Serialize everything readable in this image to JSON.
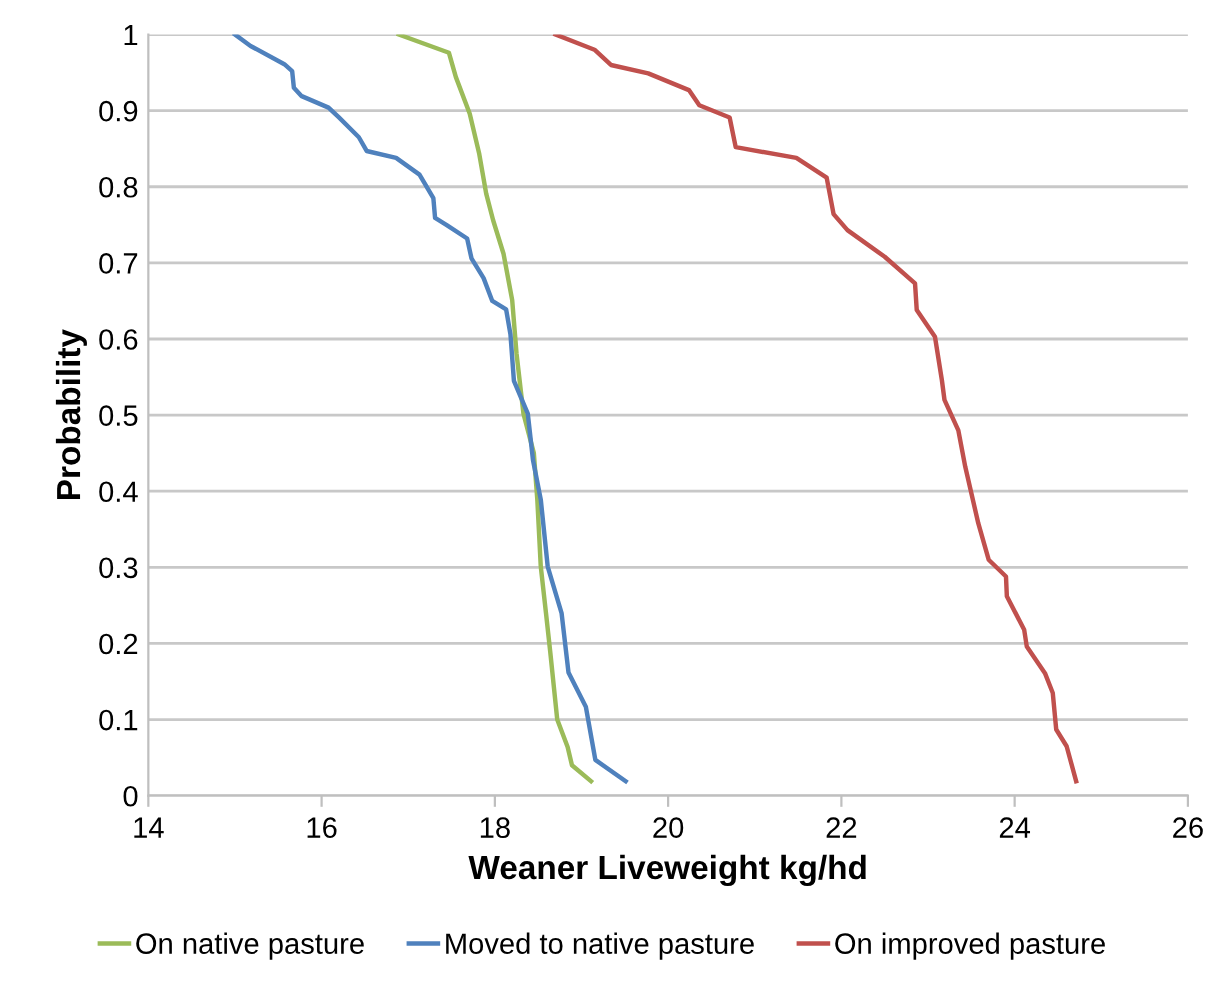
{
  "chart_data": {
    "type": "line",
    "xlabel": "Weaner Liveweight kg/hd",
    "ylabel": "Probability",
    "xlim": [
      14,
      26
    ],
    "xticks": [
      14,
      16,
      18,
      20,
      22,
      24,
      26
    ],
    "ylim": [
      0,
      1
    ],
    "yticks": [
      0,
      0.1,
      0.2,
      0.3,
      0.4,
      0.5,
      0.6,
      0.7,
      0.8,
      0.9,
      1
    ],
    "grid": "y",
    "legend": "bottom",
    "marker": "none",
    "line_style": "solid",
    "series": [
      {
        "name": "On native pasture",
        "color": "#9bbb59",
        "x": [
          16.89,
          17.47,
          17.55,
          17.71,
          17.82,
          17.9,
          17.98,
          18.1,
          18.2,
          18.25,
          18.33,
          18.45,
          18.49,
          18.53,
          18.59,
          18.64,
          18.72,
          18.84,
          18.89,
          19.11
        ],
        "values": [
          1.0,
          0.976,
          0.944,
          0.896,
          0.843,
          0.791,
          0.756,
          0.712,
          0.651,
          0.581,
          0.502,
          0.45,
          0.389,
          0.301,
          0.24,
          0.188,
          0.1,
          0.064,
          0.04,
          0.019
        ]
      },
      {
        "name": "Moved to native pasture",
        "color": "#4f81bd",
        "x": [
          15.0,
          15.18,
          15.57,
          15.66,
          15.68,
          15.77,
          16.08,
          16.2,
          16.43,
          16.52,
          16.86,
          17.13,
          17.29,
          17.31,
          17.44,
          17.68,
          17.73,
          17.87,
          17.97,
          18.13,
          18.18,
          18.22,
          18.38,
          18.44,
          18.53,
          18.61,
          18.77,
          18.85,
          19.05,
          19.16,
          19.51
        ],
        "values": [
          1.0,
          0.985,
          0.961,
          0.952,
          0.93,
          0.919,
          0.904,
          0.891,
          0.865,
          0.847,
          0.838,
          0.816,
          0.785,
          0.759,
          0.75,
          0.732,
          0.706,
          0.68,
          0.65,
          0.639,
          0.606,
          0.545,
          0.502,
          0.441,
          0.389,
          0.301,
          0.24,
          0.162,
          0.117,
          0.047,
          0.019
        ]
      },
      {
        "name": "On improved pasture",
        "color": "#c0504d",
        "x": [
          18.7,
          19.15,
          19.34,
          19.77,
          20.24,
          20.36,
          20.71,
          20.78,
          21.48,
          21.83,
          21.91,
          22.07,
          22.5,
          22.85,
          22.87,
          23.08,
          23.16,
          23.19,
          23.35,
          23.43,
          23.58,
          23.7,
          23.9,
          23.91,
          24.11,
          24.14,
          24.35,
          24.44,
          24.48,
          24.6,
          24.71
        ],
        "values": [
          1.0,
          0.98,
          0.96,
          0.949,
          0.927,
          0.907,
          0.891,
          0.852,
          0.838,
          0.812,
          0.764,
          0.743,
          0.708,
          0.673,
          0.638,
          0.603,
          0.546,
          0.52,
          0.48,
          0.432,
          0.358,
          0.31,
          0.288,
          0.262,
          0.218,
          0.196,
          0.161,
          0.135,
          0.087,
          0.065,
          0.019
        ]
      }
    ]
  }
}
